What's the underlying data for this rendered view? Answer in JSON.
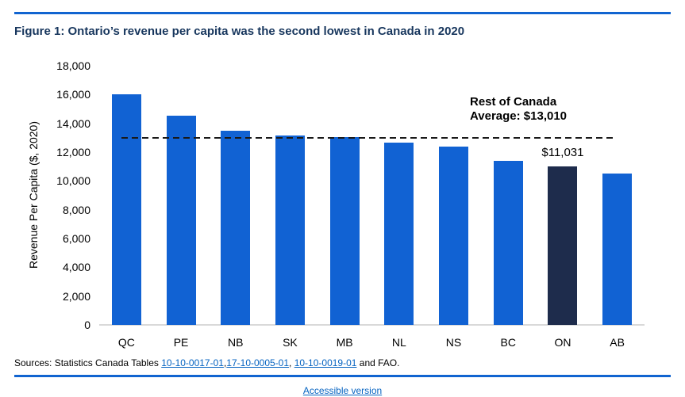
{
  "header": {
    "title": "Figure 1: Ontario’s revenue per capita was the second lowest in Canada in 2020"
  },
  "chart_data": {
    "type": "bar",
    "categories": [
      "QC",
      "PE",
      "NB",
      "SK",
      "MB",
      "NL",
      "NS",
      "BC",
      "ON",
      "AB"
    ],
    "values": [
      16000,
      14550,
      13480,
      13150,
      13030,
      12650,
      12400,
      11400,
      11031,
      10530
    ],
    "ylabel": "Revenue Per Capita ($, 2020)",
    "xlabel": "",
    "ylim": [
      0,
      18000
    ],
    "ytick_step": 2000,
    "grid": false,
    "legend": false,
    "bar_color": "#1162d3",
    "highlight": {
      "category": "ON",
      "color": "#1e2c4c",
      "label": "$11,031"
    },
    "average_line": {
      "value": 13010,
      "style": "dashed",
      "color": "#191919",
      "label_line1": "Rest of Canada",
      "label_line2": "Average: $13,010"
    }
  },
  "sources": {
    "prefix": "Sources: Statistics Canada Tables ",
    "link1": "10-10-0017-01",
    "sep1": ",",
    "link2": "17-10-0005-01",
    "sep2": ", ",
    "link3": "10-10-0019-01",
    "suffix": " and FAO."
  },
  "footer": {
    "accessible_label": "Accessible version"
  },
  "colors": {
    "rule_blue": "#1164d0",
    "title_navy": "#17365d",
    "link_blue": "#0563c1",
    "baseline_gray": "#d9d9d9"
  }
}
